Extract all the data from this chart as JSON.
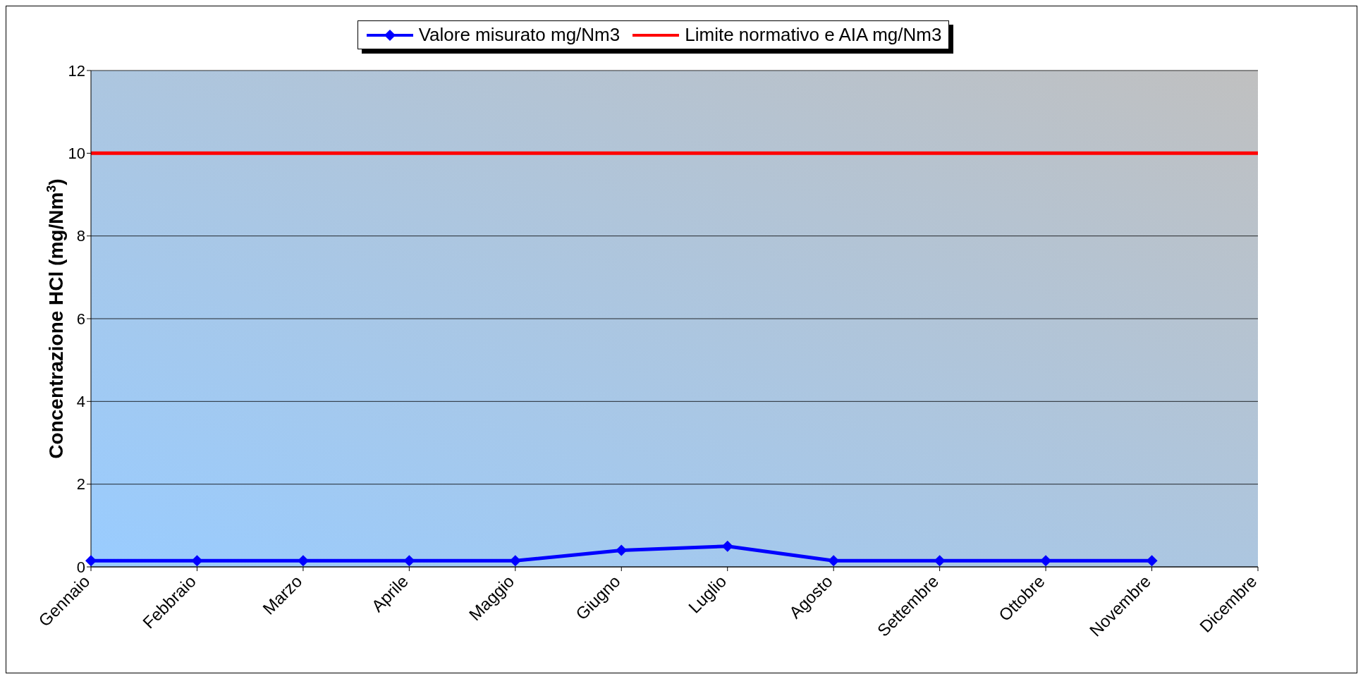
{
  "chart_data": {
    "type": "line",
    "ylabel": "Concentrazione HCl (mg/Nm$^{3}$)",
    "categories": [
      "Gennaio",
      "Febbraio",
      "Marzo",
      "Aprile",
      "Maggio",
      "Giugno",
      "Luglio",
      "Agosto",
      "Settembre",
      "Ottobre",
      "Novembre",
      "Dicembre"
    ],
    "series": [
      {
        "name": "Valore misurato mg/Nm3",
        "color": "#0000ff",
        "marker": "diamond",
        "values": [
          0.15,
          0.15,
          0.15,
          0.15,
          0.15,
          0.4,
          0.5,
          0.15,
          0.15,
          0.15,
          0.15,
          null
        ]
      },
      {
        "name": "Limite normativo e AIA mg/Nm3",
        "color": "#ff0000",
        "marker": "none",
        "values": [
          10,
          10,
          10,
          10,
          10,
          10,
          10,
          10,
          10,
          10,
          10,
          10
        ]
      }
    ],
    "ylim": [
      0,
      12
    ],
    "yticks": [
      0,
      2,
      4,
      6,
      8,
      10,
      12
    ],
    "grid": "y",
    "legend": "top"
  }
}
